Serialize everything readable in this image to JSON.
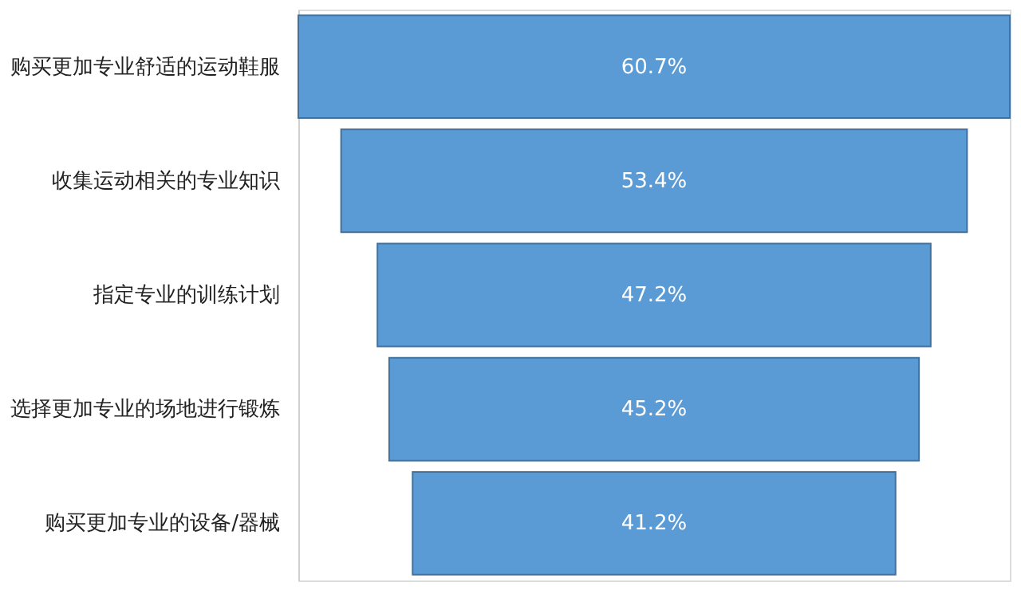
{
  "chart_data": {
    "type": "other",
    "categories": [
      "购买更加专业舒适的运动鞋服",
      "收集运动相关的专业知识",
      "指定专业的训练计划",
      "选择更加专业的场地进行锻炼",
      "购买更加专业的设备/器械"
    ],
    "values": [
      60.7,
      53.4,
      47.2,
      45.2,
      41.2
    ],
    "value_labels": [
      "60.7%",
      "53.4%",
      "47.2%",
      "45.2%",
      "41.2%"
    ],
    "color": "#5b9bd5"
  }
}
